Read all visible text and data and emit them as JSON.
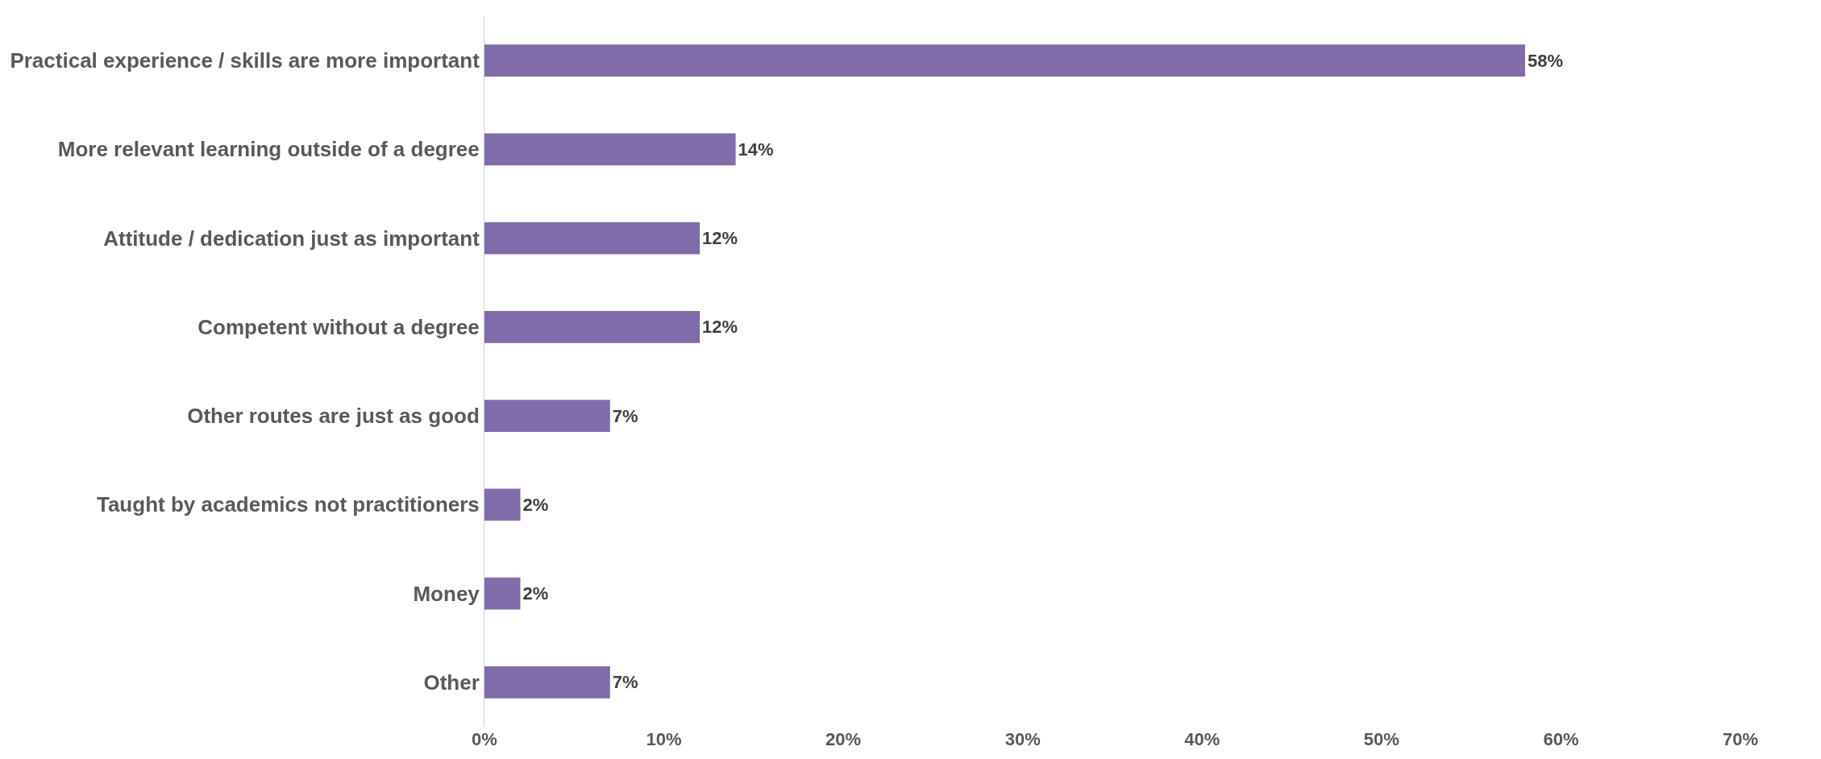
{
  "chart_data": {
    "type": "bar",
    "orientation": "horizontal",
    "categories": [
      "Practical experience / skills are more important",
      "More relevant learning outside of a degree",
      "Attitude / dedication just as important",
      "Competent without a degree",
      "Other routes are just as good",
      "Taught by academics not practitioners",
      "Money",
      "Other"
    ],
    "values": [
      58,
      14,
      12,
      12,
      7,
      2,
      2,
      7
    ],
    "value_labels": [
      "58%",
      "14%",
      "12%",
      "12%",
      "7%",
      "2%",
      "2%",
      "7%"
    ],
    "color": "#7f6ca8",
    "xlim": [
      0,
      70
    ],
    "xticks": [
      {
        "value": 0,
        "label": "0%"
      },
      {
        "value": 10,
        "label": "10%"
      },
      {
        "value": 20,
        "label": "20%"
      },
      {
        "value": 30,
        "label": "30%"
      },
      {
        "value": 40,
        "label": "40%"
      },
      {
        "value": 50,
        "label": "50%"
      },
      {
        "value": 60,
        "label": "60%"
      },
      {
        "value": 70,
        "label": "70%"
      }
    ],
    "grid": false,
    "legend": false
  }
}
